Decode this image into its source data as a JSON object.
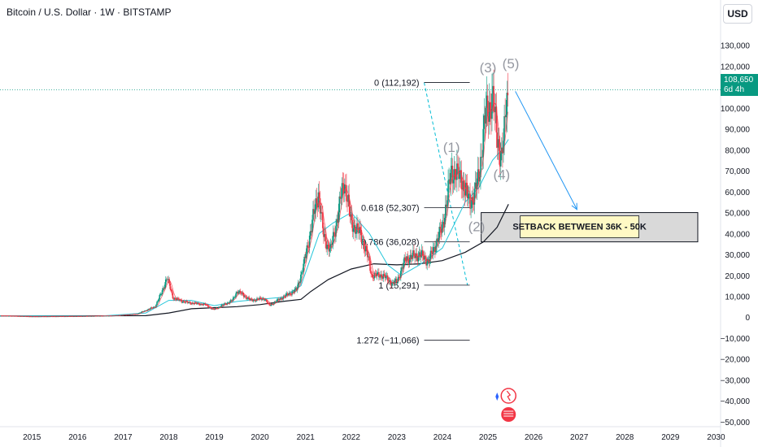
{
  "header": {
    "title": "Bitcoin / U.S. Dollar · 1W · BITSTAMP",
    "currency_button": "USD"
  },
  "price_tag": {
    "price": "108,650",
    "countdown": "6d 4h"
  },
  "colors": {
    "up": "#089981",
    "down": "#f23645",
    "ma_fast": "#26c6da",
    "ma_slow": "#131722",
    "ma_mid": "#f23645",
    "arrow": "#2196f3",
    "fib_line": "#131722"
  },
  "chart_data": {
    "type": "candlestick",
    "title": "Bitcoin / U.S. Dollar · 1W · BITSTAMP",
    "ylim": [
      -52000,
      140000
    ],
    "y_ticks": [
      "130,000",
      "120,000",
      "110,000",
      "100,000",
      "90,000",
      "80,000",
      "70,000",
      "60,000",
      "50,000",
      "40,000",
      "30,000",
      "20,000",
      "10,000",
      "0",
      "−10,000",
      "−20,000",
      "−30,000",
      "−40,000",
      "−50,000"
    ],
    "y_tick_values": [
      130000,
      120000,
      110000,
      100000,
      90000,
      80000,
      70000,
      60000,
      50000,
      40000,
      30000,
      20000,
      10000,
      0,
      -10000,
      -20000,
      -30000,
      -40000,
      -50000
    ],
    "x_ticks": [
      "2015",
      "2016",
      "2017",
      "2018",
      "2019",
      "2020",
      "2021",
      "2022",
      "2023",
      "2024",
      "2025",
      "2026",
      "2027",
      "2028",
      "2029",
      "2030"
    ],
    "x_tick_values": [
      2015,
      2016,
      2017,
      2018,
      2019,
      2020,
      2021,
      2022,
      2023,
      2024,
      2025,
      2026,
      2027,
      2028,
      2029,
      2030
    ],
    "xlim": [
      2014.3,
      2030.1
    ],
    "price_path": [
      [
        2014.3,
        700
      ],
      [
        2015.0,
        300
      ],
      [
        2016.0,
        400
      ],
      [
        2016.8,
        700
      ],
      [
        2017.3,
        1500
      ],
      [
        2017.7,
        5000
      ],
      [
        2017.85,
        12000
      ],
      [
        2017.96,
        19000
      ],
      [
        2018.1,
        9000
      ],
      [
        2018.4,
        7000
      ],
      [
        2018.8,
        6000
      ],
      [
        2018.98,
        3500
      ],
      [
        2019.4,
        8000
      ],
      [
        2019.5,
        12500
      ],
      [
        2019.8,
        8000
      ],
      [
        2020.1,
        9000
      ],
      [
        2020.2,
        5500
      ],
      [
        2020.5,
        9500
      ],
      [
        2020.8,
        13000
      ],
      [
        2020.95,
        24000
      ],
      [
        2021.1,
        40000
      ],
      [
        2021.28,
        60000
      ],
      [
        2021.4,
        38000
      ],
      [
        2021.55,
        32000
      ],
      [
        2021.7,
        48000
      ],
      [
        2021.85,
        66000
      ],
      [
        2022.0,
        45000
      ],
      [
        2022.2,
        40000
      ],
      [
        2022.35,
        30000
      ],
      [
        2022.45,
        20000
      ],
      [
        2022.7,
        20000
      ],
      [
        2022.9,
        16000
      ],
      [
        2023.0,
        17000
      ],
      [
        2023.2,
        28000
      ],
      [
        2023.5,
        30000
      ],
      [
        2023.7,
        26500
      ],
      [
        2023.85,
        35000
      ],
      [
        2024.0,
        43000
      ],
      [
        2024.2,
        70000
      ],
      [
        2024.4,
        67000
      ],
      [
        2024.6,
        55000
      ],
      [
        2024.7,
        58000
      ],
      [
        2024.8,
        68000
      ],
      [
        2024.95,
        97000
      ],
      [
        2025.1,
        105000
      ],
      [
        2025.15,
        95000
      ],
      [
        2025.25,
        80000
      ],
      [
        2025.3,
        76000
      ],
      [
        2025.35,
        85000
      ],
      [
        2025.4,
        105000
      ],
      [
        2025.45,
        108650
      ]
    ],
    "ma_fast": [
      [
        2014.3,
        500
      ],
      [
        2016.5,
        500
      ],
      [
        2017.5,
        2000
      ],
      [
        2018.0,
        8000
      ],
      [
        2018.5,
        8000
      ],
      [
        2019.0,
        5500
      ],
      [
        2019.5,
        7500
      ],
      [
        2020.0,
        8500
      ],
      [
        2020.5,
        9500
      ],
      [
        2020.9,
        15000
      ],
      [
        2021.3,
        40000
      ],
      [
        2021.6,
        45000
      ],
      [
        2022.0,
        50000
      ],
      [
        2022.4,
        40000
      ],
      [
        2022.8,
        25000
      ],
      [
        2023.1,
        20000
      ],
      [
        2023.5,
        25000
      ],
      [
        2024.0,
        33000
      ],
      [
        2024.5,
        55000
      ],
      [
        2024.8,
        62000
      ],
      [
        2025.1,
        75000
      ],
      [
        2025.3,
        80000
      ],
      [
        2025.45,
        85000
      ]
    ],
    "ma_slow": [
      [
        2014.3,
        500
      ],
      [
        2017.5,
        700
      ],
      [
        2018.0,
        2000
      ],
      [
        2018.5,
        4000
      ],
      [
        2019.0,
        4500
      ],
      [
        2019.5,
        5000
      ],
      [
        2020.0,
        6000
      ],
      [
        2020.5,
        7500
      ],
      [
        2020.9,
        8500
      ],
      [
        2021.1,
        12000
      ],
      [
        2021.5,
        18000
      ],
      [
        2022.0,
        23000
      ],
      [
        2022.5,
        25500
      ],
      [
        2023.0,
        25000
      ],
      [
        2023.5,
        25500
      ],
      [
        2024.0,
        27000
      ],
      [
        2024.5,
        31000
      ],
      [
        2024.9,
        36000
      ],
      [
        2025.2,
        43000
      ],
      [
        2025.45,
        54000
      ]
    ],
    "fib_levels": [
      {
        "label": "0 (112,192)",
        "value": 112192
      },
      {
        "label": "0.618 (52,307)",
        "value": 52307
      },
      {
        "label": "0.786 (36,028)",
        "value": 36028
      },
      {
        "label": "1 (15,291)",
        "value": 15291
      },
      {
        "label": "1.272 (−11,066)",
        "value": -11066
      }
    ],
    "waves": [
      {
        "label": "(1)",
        "x": 2024.2,
        "y": 79000
      },
      {
        "label": "(2)",
        "x": 2024.75,
        "y": 41000
      },
      {
        "label": "(3)",
        "x": 2025.0,
        "y": 117000
      },
      {
        "label": "(4)",
        "x": 2025.3,
        "y": 66000
      },
      {
        "label": "(5)",
        "x": 2025.5,
        "y": 119000
      }
    ],
    "setback_zone": {
      "x0": 2024.85,
      "x1": 2029.6,
      "y0": 36000,
      "y1": 50000
    },
    "annotation": "SETBACK BETWEEN 36K - 50K",
    "last_price": 108650
  }
}
